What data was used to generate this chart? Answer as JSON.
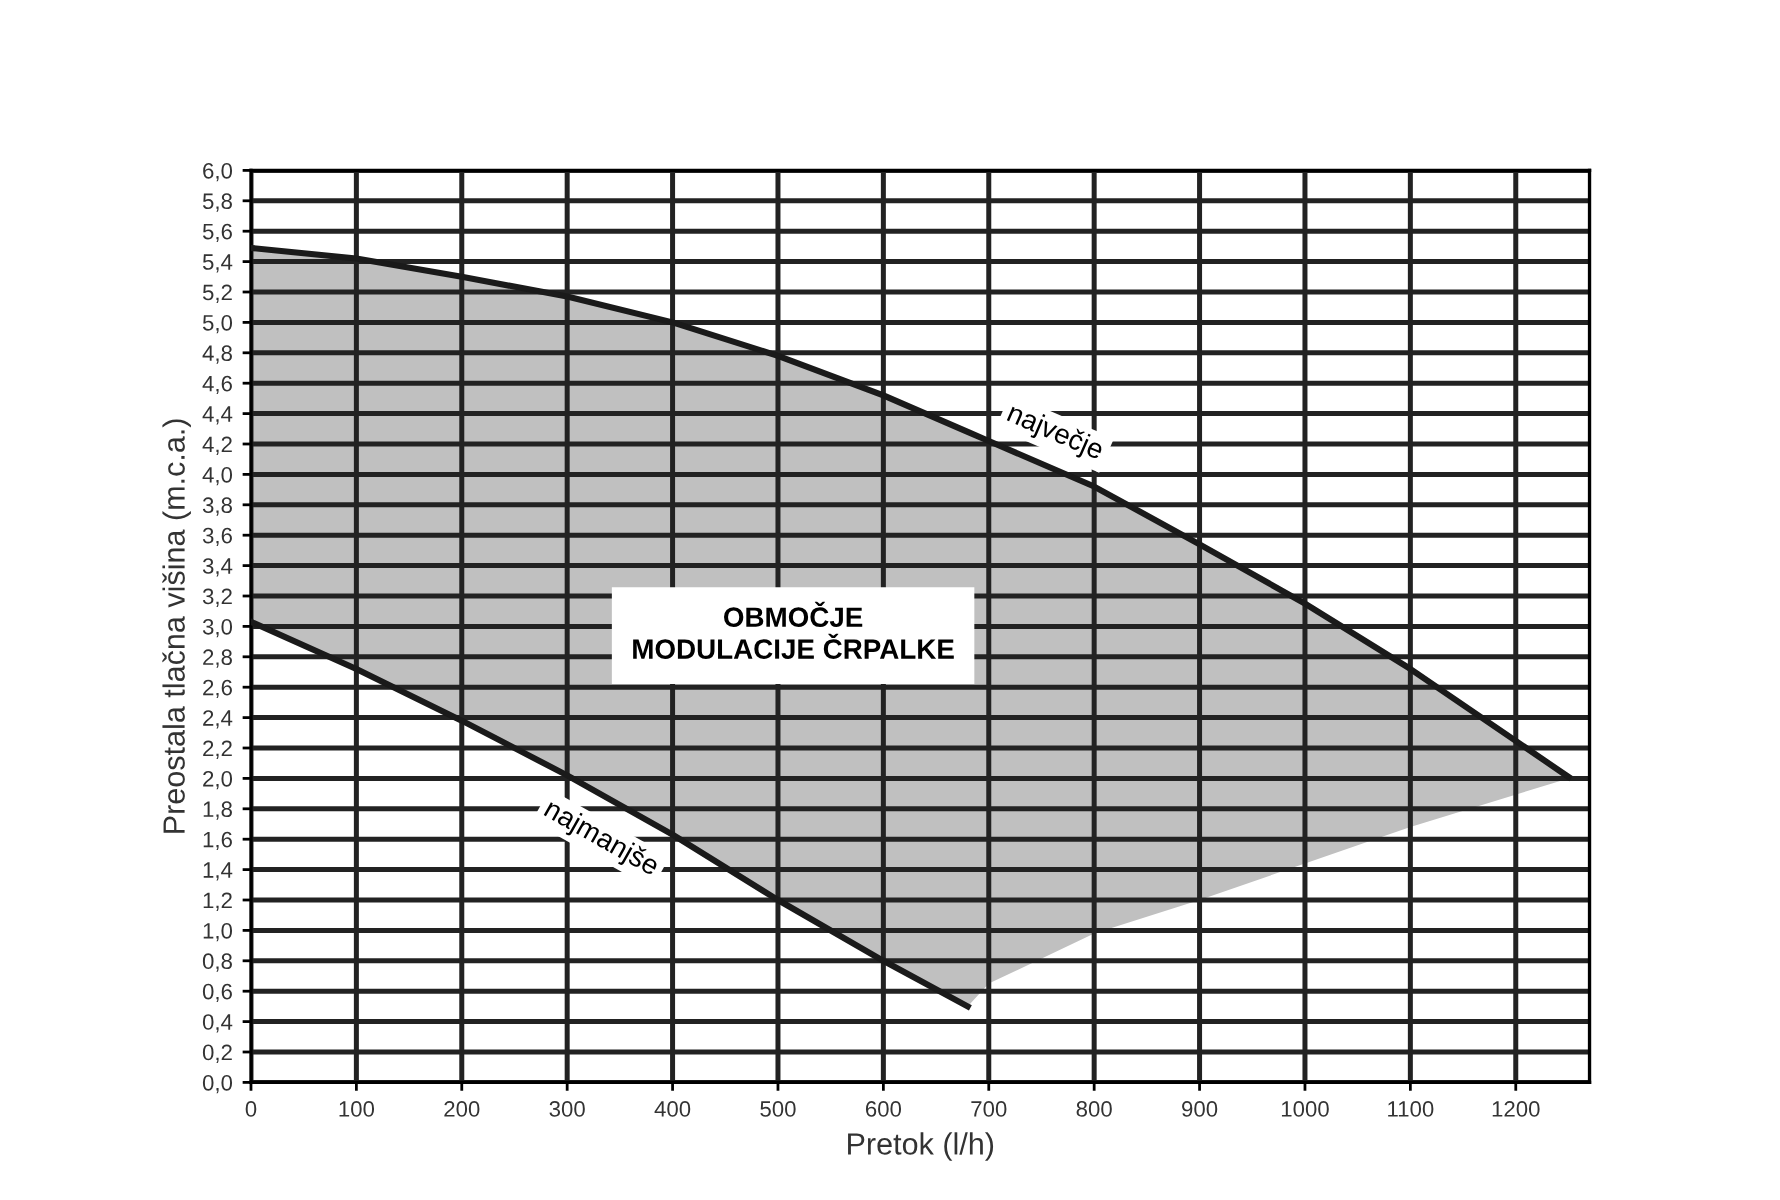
{
  "chart_data": {
    "type": "line",
    "xlabel": "Pretok (l/h)",
    "ylabel": "Preostala tlačna višina (m.c.a.)",
    "annotations": [
      "OBMOČJE\nMODULACIJE ČRPALKE"
    ],
    "series": [
      {
        "name": "največje",
        "color": "#1a1a1a",
        "x": [
          0,
          100,
          200,
          300,
          400,
          500,
          600,
          680,
          700,
          800,
          900,
          1000,
          1100,
          1250
        ],
        "values": [
          5.49,
          5.42,
          5.3,
          5.17,
          5.0,
          4.78,
          4.52,
          4.28,
          4.22,
          3.92,
          3.54,
          3.15,
          2.72,
          2.01
        ],
        "lower": [
          3.03,
          2.72,
          2.38,
          2.02,
          1.63,
          1.2,
          0.8,
          0.5,
          0.65,
          0.98,
          1.2,
          1.44,
          1.68,
          2.0
        ],
        "upper": [
          5.49,
          5.42,
          5.3,
          5.17,
          5.0,
          4.78,
          4.52,
          4.28,
          4.22,
          3.92,
          3.54,
          3.15,
          2.72,
          2.01
        ]
      },
      {
        "name": "najmanjše",
        "color": "#1a1a1a",
        "x": [
          0,
          100,
          200,
          300,
          400,
          500,
          600,
          680
        ],
        "values": [
          3.03,
          2.72,
          2.38,
          2.02,
          1.63,
          1.2,
          0.8,
          0.5
        ]
      }
    ],
    "xlim": [
      0,
      1270
    ],
    "xticks": [
      0,
      100,
      200,
      300,
      400,
      500,
      600,
      700,
      800,
      900,
      1000,
      1100,
      1200
    ],
    "ylim": [
      0,
      6
    ],
    "yticks": [
      {
        "value": 0,
        "label": "0,0"
      },
      {
        "value": 0.2,
        "label": "0,2"
      },
      {
        "value": 0.4,
        "label": "0,4"
      },
      {
        "value": 0.6,
        "label": "0,6"
      },
      {
        "value": 0.8,
        "label": "0,8"
      },
      {
        "value": 1.0,
        "label": "1,0"
      },
      {
        "value": 1.2,
        "label": "1,2"
      },
      {
        "value": 1.4,
        "label": "1,4"
      },
      {
        "value": 1.6,
        "label": "1,6"
      },
      {
        "value": 1.8,
        "label": "1,8"
      },
      {
        "value": 2.0,
        "label": "2,0"
      },
      {
        "value": 2.2,
        "label": "2,2"
      },
      {
        "value": 2.4,
        "label": "2,4"
      },
      {
        "value": 2.6,
        "label": "2,6"
      },
      {
        "value": 2.8,
        "label": "2,8"
      },
      {
        "value": 3.0,
        "label": "3,0"
      },
      {
        "value": 3.2,
        "label": "3,2"
      },
      {
        "value": 3.4,
        "label": "3,4"
      },
      {
        "value": 3.6,
        "label": "3,6"
      },
      {
        "value": 3.8,
        "label": "3,8"
      },
      {
        "value": 4.0,
        "label": "4,0"
      },
      {
        "value": 4.2,
        "label": "4,2"
      },
      {
        "value": 4.4,
        "label": "4,4"
      },
      {
        "value": 4.6,
        "label": "4,6"
      },
      {
        "value": 4.8,
        "label": "4,8"
      },
      {
        "value": 5.0,
        "label": "5,0"
      },
      {
        "value": 5.2,
        "label": "5,2"
      },
      {
        "value": 5.4,
        "label": "5,4"
      },
      {
        "value": 5.6,
        "label": "5,6"
      },
      {
        "value": 5.8,
        "label": "5,8"
      },
      {
        "value": 6.0,
        "label": "6,0"
      }
    ],
    "grid": true,
    "legend": false,
    "marker": "none",
    "line_style": "solid"
  }
}
